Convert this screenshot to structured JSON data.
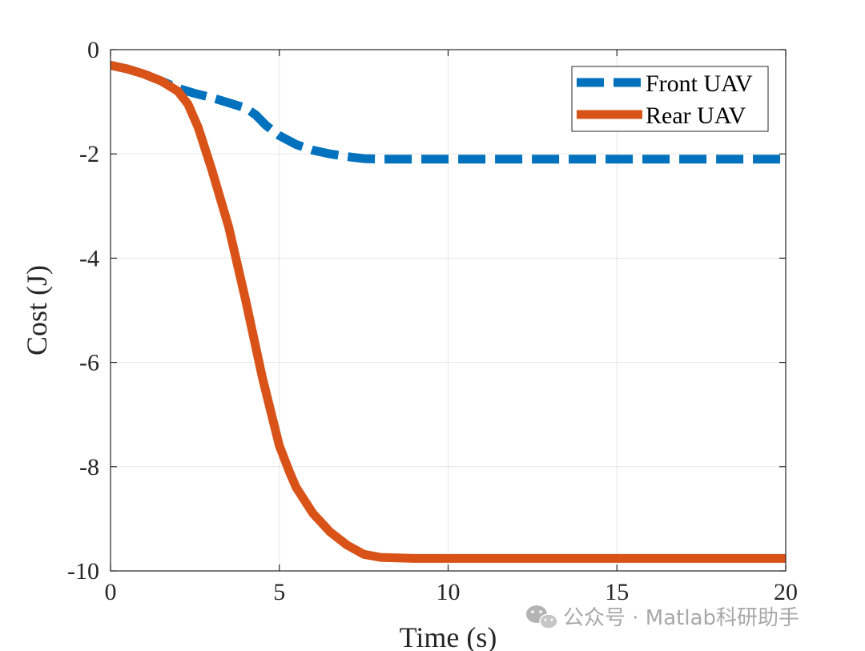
{
  "chart_data": {
    "type": "line",
    "xlabel": "Time (s)",
    "ylabel": "Cost (J)",
    "xlim": [
      0,
      20
    ],
    "ylim": [
      -10,
      0
    ],
    "xticks": [
      0,
      5,
      10,
      15,
      20
    ],
    "yticks": [
      0,
      -2,
      -4,
      -6,
      -8,
      -10
    ],
    "grid": true,
    "legend_position": "top-right",
    "series": [
      {
        "name": "Front UAV",
        "color": "#0072BD",
        "style": "dashed",
        "x": [
          0,
          0.5,
          1.0,
          1.5,
          2.0,
          2.5,
          3.0,
          3.5,
          4.0,
          4.3,
          4.6,
          5.0,
          5.5,
          6.0,
          6.5,
          7.0,
          7.5,
          8.0,
          10,
          12,
          14,
          16,
          18,
          20
        ],
        "y": [
          -0.3,
          -0.37,
          -0.47,
          -0.6,
          -0.74,
          -0.84,
          -0.92,
          -1.02,
          -1.12,
          -1.25,
          -1.45,
          -1.65,
          -1.82,
          -1.93,
          -2.0,
          -2.05,
          -2.09,
          -2.1,
          -2.1,
          -2.1,
          -2.1,
          -2.1,
          -2.1,
          -2.1
        ]
      },
      {
        "name": "Rear UAV",
        "color": "#D95319",
        "style": "solid",
        "x": [
          0,
          0.5,
          1.0,
          1.5,
          2.0,
          2.3,
          2.6,
          3.0,
          3.5,
          4.0,
          4.5,
          5.0,
          5.3,
          5.5,
          6.0,
          6.5,
          7.0,
          7.5,
          8.0,
          9.0,
          10,
          12,
          14,
          16,
          18,
          20
        ],
        "y": [
          -0.3,
          -0.37,
          -0.47,
          -0.6,
          -0.8,
          -1.05,
          -1.5,
          -2.3,
          -3.4,
          -4.8,
          -6.3,
          -7.6,
          -8.1,
          -8.4,
          -8.9,
          -9.25,
          -9.5,
          -9.68,
          -9.74,
          -9.76,
          -9.76,
          -9.76,
          -9.76,
          -9.76,
          -9.76,
          -9.76
        ]
      }
    ]
  },
  "watermark": {
    "text": "公众号 · Matlab科研助手",
    "icon": "wechat-icon"
  }
}
